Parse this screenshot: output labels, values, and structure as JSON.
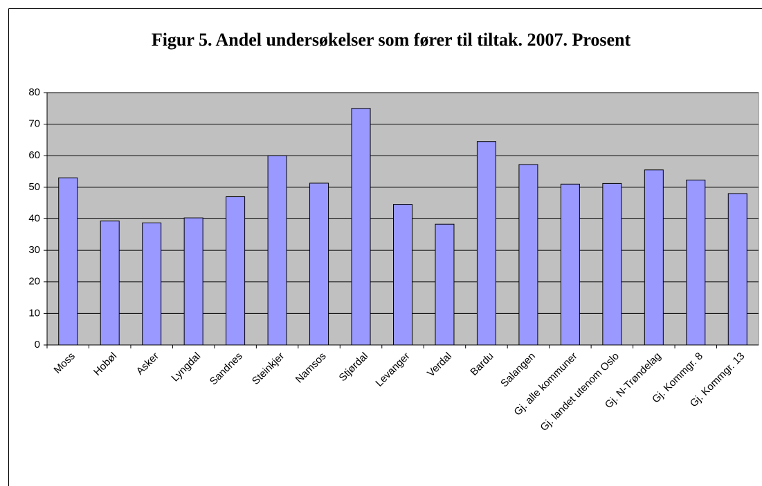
{
  "chart_data": {
    "type": "bar",
    "title": "Figur 5. Andel undersøkelser som fører til tiltak. 2007. Prosent",
    "categories": [
      "Moss",
      "Hobøl",
      "Asker",
      "Lyngdal",
      "Sandnes",
      "Steinkjer",
      "Namsos",
      "Stjørdal",
      "Levanger",
      "Verdal",
      "Bardu",
      "Salangen",
      "Gj. alle kommuner",
      "Gj. landet utenom Oslo",
      "Gj. N-Trøndelag",
      "Gj. Kommgr. 8",
      "Gj. Kommgr. 13"
    ],
    "values": [
      53,
      39.3,
      38.7,
      40.3,
      47,
      60,
      51.3,
      75,
      44.6,
      38.3,
      64.5,
      57.2,
      51,
      51.2,
      55.5,
      52.3,
      48
    ],
    "color": "#9999ff",
    "ylim": [
      0,
      80
    ],
    "yticks": [
      0,
      10,
      20,
      30,
      40,
      50,
      60,
      70,
      80
    ],
    "grid": true
  }
}
